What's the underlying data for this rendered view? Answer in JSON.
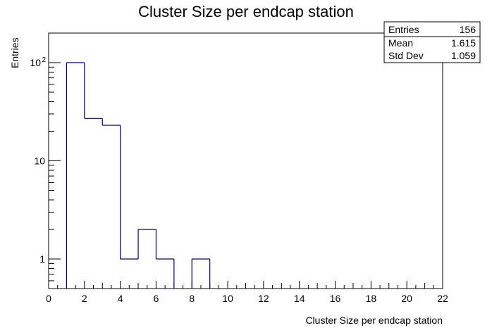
{
  "chart_data": {
    "type": "bar",
    "title": "Cluster Size per endcap station",
    "xlabel": "Cluster Size per endcap station",
    "ylabel": "Entries",
    "log_y": true,
    "xlim": [
      0,
      22
    ],
    "ylim": [
      0.5,
      200
    ],
    "bin_edges": [
      1,
      2,
      3,
      4,
      5,
      6,
      7,
      8,
      9
    ],
    "values": [
      100,
      27,
      23,
      1,
      2,
      1,
      0,
      1
    ],
    "x_tick_labels": [
      "0",
      "2",
      "4",
      "6",
      "8",
      "10",
      "12",
      "14",
      "16",
      "18",
      "20",
      "22"
    ],
    "y_tick_labels": [
      {
        "base": "10",
        "exp": "2",
        "value": 100
      },
      {
        "base": "10",
        "exp": "",
        "value": 10
      },
      {
        "base": "1",
        "exp": "",
        "value": 1
      }
    ],
    "line_color": "#000080",
    "stats": [
      {
        "label": "Entries",
        "value": "156"
      },
      {
        "label": "Mean",
        "value": "1.615"
      },
      {
        "label": "Std Dev",
        "value": "1.059"
      }
    ]
  }
}
